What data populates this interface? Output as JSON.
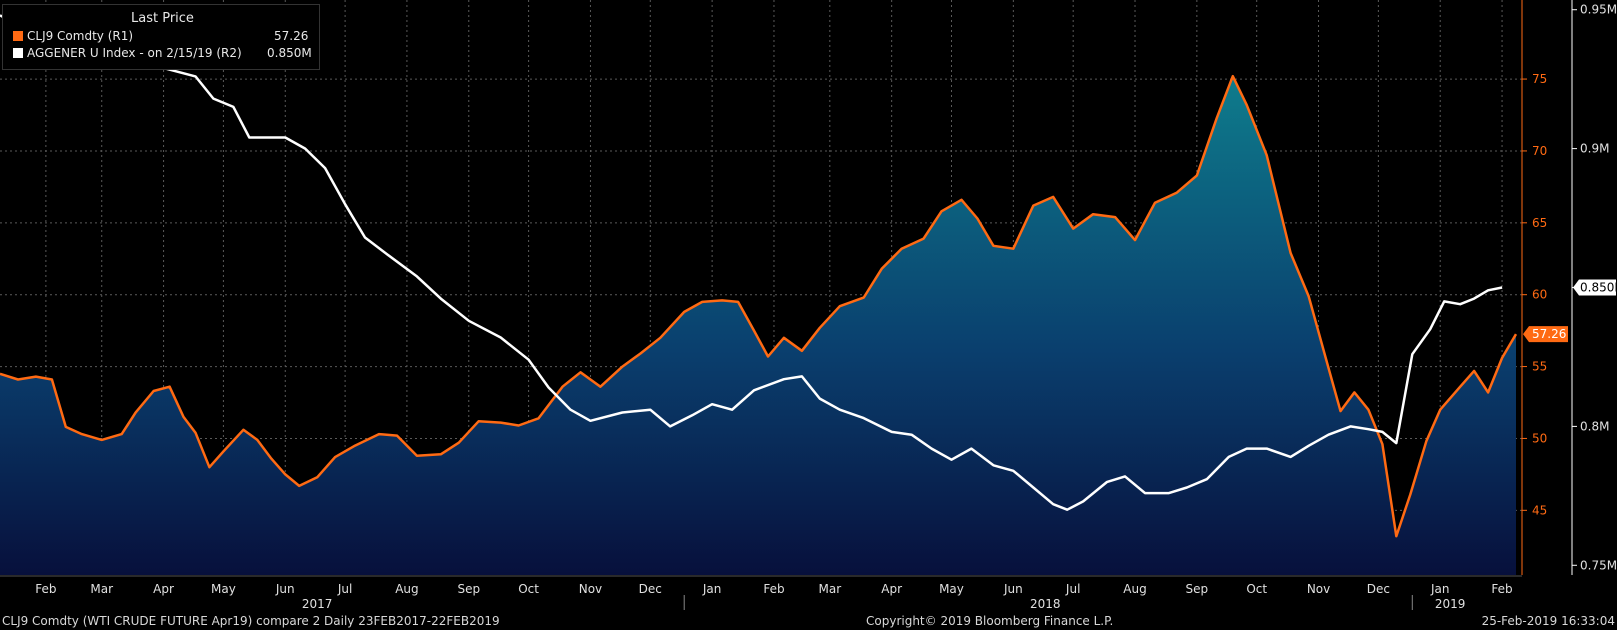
{
  "legend": {
    "header": "Last Price",
    "items": [
      {
        "label": "CLJ9 Comdty  (R1)",
        "value": "57.26",
        "color": "#ff6a13"
      },
      {
        "label": "AGGENER U Index -  on 2/15/19  (R2)",
        "value": "0.850M",
        "color": "#ffffff"
      }
    ]
  },
  "footer": {
    "left": "CLJ9 Comdty (WTI CRUDE FUTURE  Apr19) compare 2  Daily 23FEB2017-22FEB2019",
    "center": "Copyright© 2019 Bloomberg Finance L.P.",
    "right": "25-Feb-2019 16:33:04"
  },
  "chart_data": {
    "type": "line",
    "x_range": [
      "2017-01-23",
      "2019-02-25"
    ],
    "x_month_labels": [
      "Feb",
      "Mar",
      "Apr",
      "May",
      "Jun",
      "Jul",
      "Aug",
      "Sep",
      "Oct",
      "Nov",
      "Dec",
      "Jan",
      "Feb",
      "Mar",
      "Apr",
      "May",
      "Jun",
      "Jul",
      "Aug",
      "Sep",
      "Oct",
      "Nov",
      "Dec",
      "Jan",
      "Feb"
    ],
    "x_year_labels": [
      "2017",
      "2018",
      "2019"
    ],
    "axes": {
      "R1": {
        "min": 40.5,
        "max": 80.5,
        "ticks": [
          45,
          50,
          55,
          60,
          65,
          70,
          75
        ],
        "tick_labels": [
          "45",
          "50",
          "55",
          "60",
          "65",
          "70",
          "75"
        ]
      },
      "R2": {
        "min": 0.7465,
        "max": 0.9535,
        "ticks": [
          0.75,
          0.8,
          0.85,
          0.9,
          0.95
        ],
        "tick_labels": [
          "0.75M",
          "0.8M",
          "0.85M",
          "0.9M",
          "0.95M"
        ]
      }
    },
    "series": [
      {
        "name": "CLJ9 Comdty",
        "axis": "R1",
        "style": "area",
        "color": "#ff6a13",
        "last_label": "57.26",
        "points": [
          [
            "2017-01-23",
            54.5
          ],
          [
            "2017-02-01",
            54.1
          ],
          [
            "2017-02-10",
            54.3
          ],
          [
            "2017-02-18",
            54.1
          ],
          [
            "2017-02-25",
            50.8
          ],
          [
            "2017-03-05",
            50.3
          ],
          [
            "2017-03-15",
            49.9
          ],
          [
            "2017-03-25",
            50.3
          ],
          [
            "2017-04-01",
            51.8
          ],
          [
            "2017-04-10",
            53.3
          ],
          [
            "2017-04-18",
            53.6
          ],
          [
            "2017-04-25",
            51.5
          ],
          [
            "2017-05-01",
            50.4
          ],
          [
            "2017-05-08",
            48.0
          ],
          [
            "2017-05-15",
            49.1
          ],
          [
            "2017-05-25",
            50.6
          ],
          [
            "2017-06-01",
            49.9
          ],
          [
            "2017-06-08",
            48.6
          ],
          [
            "2017-06-15",
            47.5
          ],
          [
            "2017-06-22",
            46.7
          ],
          [
            "2017-07-01",
            47.3
          ],
          [
            "2017-07-10",
            48.7
          ],
          [
            "2017-07-20",
            49.5
          ],
          [
            "2017-08-01",
            50.3
          ],
          [
            "2017-08-10",
            50.2
          ],
          [
            "2017-08-20",
            48.8
          ],
          [
            "2017-09-01",
            48.9
          ],
          [
            "2017-09-10",
            49.7
          ],
          [
            "2017-09-20",
            51.2
          ],
          [
            "2017-10-01",
            51.1
          ],
          [
            "2017-10-10",
            50.9
          ],
          [
            "2017-10-20",
            51.4
          ],
          [
            "2017-11-01",
            53.6
          ],
          [
            "2017-11-10",
            54.6
          ],
          [
            "2017-11-20",
            53.6
          ],
          [
            "2017-12-01",
            55.0
          ],
          [
            "2017-12-10",
            55.9
          ],
          [
            "2017-12-20",
            57.0
          ],
          [
            "2018-01-01",
            58.8
          ],
          [
            "2018-01-10",
            59.5
          ],
          [
            "2018-01-20",
            59.6
          ],
          [
            "2018-01-28",
            59.5
          ],
          [
            "2018-02-05",
            57.5
          ],
          [
            "2018-02-12",
            55.7
          ],
          [
            "2018-02-20",
            57.0
          ],
          [
            "2018-03-01",
            56.1
          ],
          [
            "2018-03-10",
            57.7
          ],
          [
            "2018-03-20",
            59.2
          ],
          [
            "2018-04-01",
            59.8
          ],
          [
            "2018-04-10",
            61.8
          ],
          [
            "2018-04-20",
            63.2
          ],
          [
            "2018-05-01",
            63.9
          ],
          [
            "2018-05-10",
            65.8
          ],
          [
            "2018-05-20",
            66.6
          ],
          [
            "2018-05-28",
            65.3
          ],
          [
            "2018-06-05",
            63.4
          ],
          [
            "2018-06-15",
            63.2
          ],
          [
            "2018-06-25",
            66.2
          ],
          [
            "2018-07-05",
            66.8
          ],
          [
            "2018-07-15",
            64.6
          ],
          [
            "2018-07-25",
            65.6
          ],
          [
            "2018-08-05",
            65.4
          ],
          [
            "2018-08-15",
            63.8
          ],
          [
            "2018-08-25",
            66.4
          ],
          [
            "2018-09-05",
            67.1
          ],
          [
            "2018-09-15",
            68.3
          ],
          [
            "2018-09-25",
            72.3
          ],
          [
            "2018-10-03",
            75.2
          ],
          [
            "2018-10-10",
            73.2
          ],
          [
            "2018-10-20",
            69.7
          ],
          [
            "2018-11-01",
            62.9
          ],
          [
            "2018-11-10",
            59.9
          ],
          [
            "2018-11-18",
            55.9
          ],
          [
            "2018-11-26",
            51.9
          ],
          [
            "2018-12-03",
            53.2
          ],
          [
            "2018-12-10",
            52.0
          ],
          [
            "2018-12-17",
            49.6
          ],
          [
            "2018-12-24",
            43.2
          ],
          [
            "2018-12-31",
            46.1
          ],
          [
            "2019-01-08",
            49.8
          ],
          [
            "2019-01-15",
            52.0
          ],
          [
            "2019-01-25",
            53.6
          ],
          [
            "2019-02-01",
            54.7
          ],
          [
            "2019-02-08",
            53.2
          ],
          [
            "2019-02-15",
            55.6
          ],
          [
            "2019-02-22",
            57.26
          ]
        ]
      },
      {
        "name": "AGGENER U Index",
        "axis": "R2",
        "style": "line",
        "color": "#ffffff",
        "last_label": "0.850M",
        "points": [
          [
            "2017-01-23",
            0.948
          ],
          [
            "2017-02-05",
            0.943
          ],
          [
            "2017-02-15",
            0.942
          ],
          [
            "2017-03-01",
            0.939
          ],
          [
            "2017-03-15",
            0.936
          ],
          [
            "2017-03-25",
            0.932
          ],
          [
            "2017-04-05",
            0.931
          ],
          [
            "2017-04-15",
            0.929
          ],
          [
            "2017-05-01",
            0.926
          ],
          [
            "2017-05-10",
            0.918
          ],
          [
            "2017-05-20",
            0.915
          ],
          [
            "2017-05-28",
            0.904
          ],
          [
            "2017-06-05",
            0.904
          ],
          [
            "2017-06-15",
            0.904
          ],
          [
            "2017-06-25",
            0.9
          ],
          [
            "2017-07-05",
            0.893
          ],
          [
            "2017-07-15",
            0.88
          ],
          [
            "2017-07-25",
            0.868
          ],
          [
            "2017-08-05",
            0.862
          ],
          [
            "2017-08-20",
            0.854
          ],
          [
            "2017-09-01",
            0.846
          ],
          [
            "2017-09-15",
            0.838
          ],
          [
            "2017-10-01",
            0.832
          ],
          [
            "2017-10-15",
            0.824
          ],
          [
            "2017-10-25",
            0.814
          ],
          [
            "2017-11-05",
            0.806
          ],
          [
            "2017-11-15",
            0.802
          ],
          [
            "2017-12-01",
            0.805
          ],
          [
            "2017-12-15",
            0.806
          ],
          [
            "2017-12-25",
            0.8
          ],
          [
            "2018-01-05",
            0.804
          ],
          [
            "2018-01-15",
            0.808
          ],
          [
            "2018-01-25",
            0.806
          ],
          [
            "2018-02-05",
            0.813
          ],
          [
            "2018-02-20",
            0.817
          ],
          [
            "2018-03-01",
            0.818
          ],
          [
            "2018-03-10",
            0.81
          ],
          [
            "2018-03-20",
            0.806
          ],
          [
            "2018-04-01",
            0.803
          ],
          [
            "2018-04-15",
            0.798
          ],
          [
            "2018-04-25",
            0.797
          ],
          [
            "2018-05-05",
            0.792
          ],
          [
            "2018-05-15",
            0.788
          ],
          [
            "2018-05-25",
            0.792
          ],
          [
            "2018-06-05",
            0.786
          ],
          [
            "2018-06-15",
            0.784
          ],
          [
            "2018-06-25",
            0.778
          ],
          [
            "2018-07-05",
            0.772
          ],
          [
            "2018-07-12",
            0.77
          ],
          [
            "2018-07-20",
            0.773
          ],
          [
            "2018-08-01",
            0.78
          ],
          [
            "2018-08-10",
            0.782
          ],
          [
            "2018-08-20",
            0.776
          ],
          [
            "2018-09-01",
            0.776
          ],
          [
            "2018-09-10",
            0.778
          ],
          [
            "2018-09-20",
            0.781
          ],
          [
            "2018-10-01",
            0.789
          ],
          [
            "2018-10-10",
            0.792
          ],
          [
            "2018-10-20",
            0.792
          ],
          [
            "2018-11-01",
            0.789
          ],
          [
            "2018-11-10",
            0.793
          ],
          [
            "2018-11-20",
            0.797
          ],
          [
            "2018-12-01",
            0.8
          ],
          [
            "2018-12-10",
            0.799
          ],
          [
            "2018-12-17",
            0.798
          ],
          [
            "2018-12-24",
            0.794
          ],
          [
            "2019-01-01",
            0.826
          ],
          [
            "2019-01-10",
            0.835
          ],
          [
            "2019-01-17",
            0.845
          ],
          [
            "2019-01-25",
            0.844
          ],
          [
            "2019-02-01",
            0.846
          ],
          [
            "2019-02-08",
            0.849
          ],
          [
            "2019-02-15",
            0.85
          ]
        ]
      }
    ],
    "grid": true,
    "legend_position": "top-left"
  }
}
